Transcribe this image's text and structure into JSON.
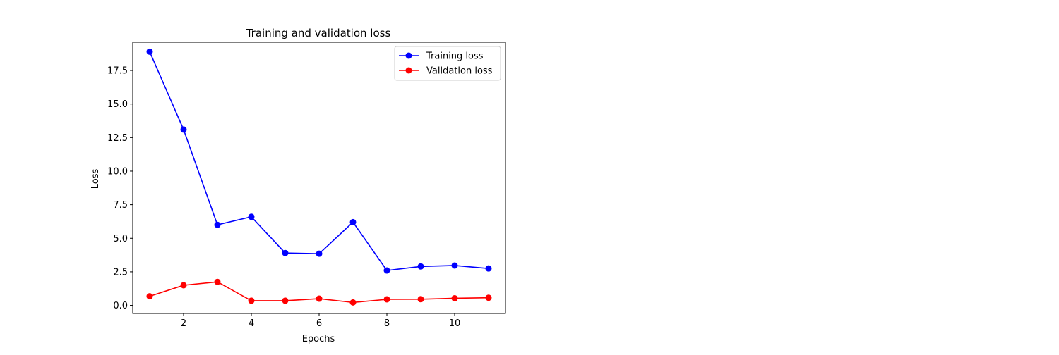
{
  "chart_data": {
    "type": "line",
    "title": "Training and validation loss",
    "xlabel": "Epochs",
    "ylabel": "Loss",
    "xlim": [
      0.5,
      11.5
    ],
    "ylim": [
      -0.6,
      19.6
    ],
    "xticks": [
      2,
      4,
      6,
      8,
      10
    ],
    "yticks": [
      0.0,
      2.5,
      5.0,
      7.5,
      10.0,
      12.5,
      15.0,
      17.5
    ],
    "ytick_labels": [
      "0.0",
      "2.5",
      "5.0",
      "7.5",
      "10.0",
      "12.5",
      "15.0",
      "17.5"
    ],
    "grid": false,
    "legend_position": "top-right",
    "x": [
      1,
      2,
      3,
      4,
      5,
      6,
      7,
      8,
      9,
      10,
      11
    ],
    "series": [
      {
        "name": "Training loss",
        "color": "#0000ff",
        "marker": "circle",
        "values": [
          18.9,
          13.1,
          6.0,
          6.6,
          3.9,
          3.85,
          6.2,
          2.6,
          2.9,
          2.97,
          2.75
        ]
      },
      {
        "name": "Validation loss",
        "color": "#ff0000",
        "marker": "circle",
        "values": [
          0.68,
          1.5,
          1.75,
          0.35,
          0.35,
          0.5,
          0.22,
          0.45,
          0.46,
          0.53,
          0.57
        ]
      }
    ]
  }
}
